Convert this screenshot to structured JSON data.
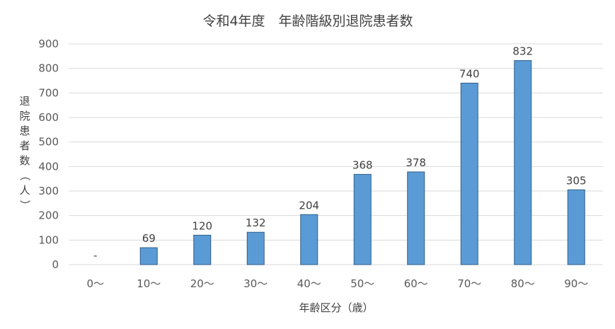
{
  "chart_data": {
    "type": "bar",
    "title": "令和4年度　年齢階級別退院患者数",
    "xlabel": "年齢区分（歳）",
    "ylabel": "退院患者数（人）",
    "categories": [
      "0～",
      "10～",
      "20～",
      "30～",
      "40～",
      "50～",
      "60～",
      "70～",
      "80～",
      "90～"
    ],
    "values": [
      0,
      69,
      120,
      132,
      204,
      368,
      378,
      740,
      832,
      305
    ],
    "data_labels": [
      "-",
      "69",
      "120",
      "132",
      "204",
      "368",
      "378",
      "740",
      "832",
      "305"
    ],
    "yticks": [
      "0",
      "100",
      "200",
      "300",
      "400",
      "500",
      "600",
      "700",
      "800",
      "900"
    ],
    "ylim": [
      0,
      900
    ],
    "grid": true,
    "legend": "none",
    "bar_color": "#5b9bd5"
  }
}
